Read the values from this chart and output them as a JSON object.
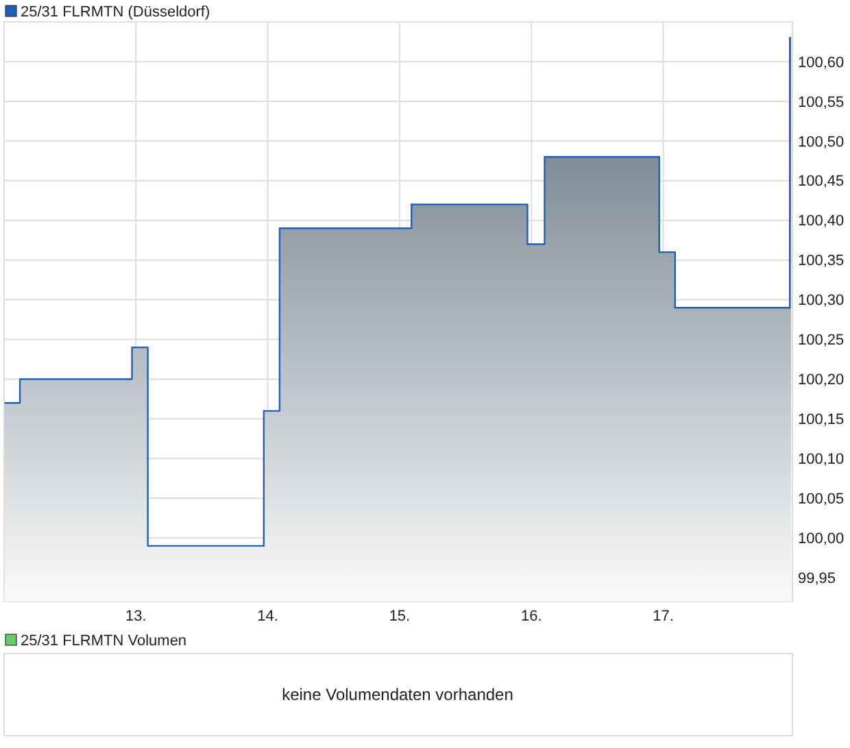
{
  "chart_data": [
    {
      "type": "area",
      "x": [
        12.003,
        12.12,
        12.12,
        12.97,
        12.97,
        13.09,
        13.09,
        13.97,
        13.97,
        14.09,
        14.09,
        15.09,
        15.09,
        15.97,
        15.97,
        16.1,
        16.1,
        16.97,
        16.97,
        17.09,
        17.09,
        17.96,
        17.96,
        17.97
      ],
      "series": [
        {
          "name": "25/31 FLRMTN (Düsseldorf)",
          "color": "#1f5fbf",
          "values": [
            100.17,
            100.17,
            100.2,
            100.2,
            100.24,
            100.24,
            99.99,
            99.99,
            100.16,
            100.16,
            100.39,
            100.39,
            100.42,
            100.42,
            100.37,
            100.37,
            100.48,
            100.48,
            100.36,
            100.36,
            100.29,
            100.29,
            100.63,
            100.63
          ]
        }
      ],
      "xlim": [
        12.0,
        17.98
      ],
      "xticks": [
        {
          "value": 13,
          "label": "13."
        },
        {
          "value": 14,
          "label": "14."
        },
        {
          "value": 15,
          "label": "15."
        },
        {
          "value": 16,
          "label": "16."
        },
        {
          "value": 17,
          "label": "17."
        }
      ],
      "ylim": [
        99.92,
        100.65
      ],
      "yticks": [
        {
          "value": 99.95,
          "label": "99,95"
        },
        {
          "value": 100.0,
          "label": "100,00"
        },
        {
          "value": 100.05,
          "label": "100,05"
        },
        {
          "value": 100.1,
          "label": "100,10"
        },
        {
          "value": 100.15,
          "label": "100,15"
        },
        {
          "value": 100.2,
          "label": "100,20"
        },
        {
          "value": 100.25,
          "label": "100,25"
        },
        {
          "value": 100.3,
          "label": "100,30"
        },
        {
          "value": 100.35,
          "label": "100,35"
        },
        {
          "value": 100.4,
          "label": "100,40"
        },
        {
          "value": 100.45,
          "label": "100,45"
        },
        {
          "value": 100.5,
          "label": "100,50"
        },
        {
          "value": 100.55,
          "label": "100,55"
        },
        {
          "value": 100.6,
          "label": "100,60"
        }
      ],
      "grid": true,
      "legend": "top left"
    },
    {
      "type": "other",
      "title": "25/31 FLRMTN Volumen",
      "annotations": [
        "keine Volumendaten vorhanden"
      ]
    }
  ]
}
